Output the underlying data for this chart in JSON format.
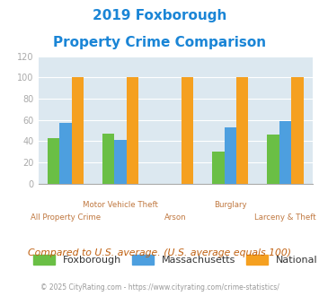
{
  "title_line1": "2019 Foxborough",
  "title_line2": "Property Crime Comparison",
  "title_color": "#1a85d6",
  "categories": [
    "All Property Crime",
    "Motor Vehicle Theft",
    "Arson",
    "Burglary",
    "Larceny & Theft"
  ],
  "foxborough": [
    43,
    47,
    0,
    30,
    46
  ],
  "massachusetts": [
    57,
    41,
    0,
    53,
    59
  ],
  "national": [
    100,
    100,
    100,
    100,
    100
  ],
  "fox_color": "#6abf45",
  "ma_color": "#4d9fdf",
  "nat_color": "#f5a020",
  "ylim": [
    0,
    120
  ],
  "yticks": [
    0,
    20,
    40,
    60,
    80,
    100,
    120
  ],
  "bg_color": "#dce8f0",
  "fig_bg": "#ffffff",
  "legend_labels": [
    "Foxborough",
    "Massachusetts",
    "National"
  ],
  "note_text": "Compared to U.S. average. (U.S. average equals 100)",
  "note_color": "#c06010",
  "copyright_text": "© 2025 CityRating.com - https://www.cityrating.com/crime-statistics/",
  "copyright_color": "#999999",
  "xlabel_color": "#c07840",
  "tick_color": "#aaaaaa",
  "grid_color": "#ffffff",
  "bar_width": 0.22
}
